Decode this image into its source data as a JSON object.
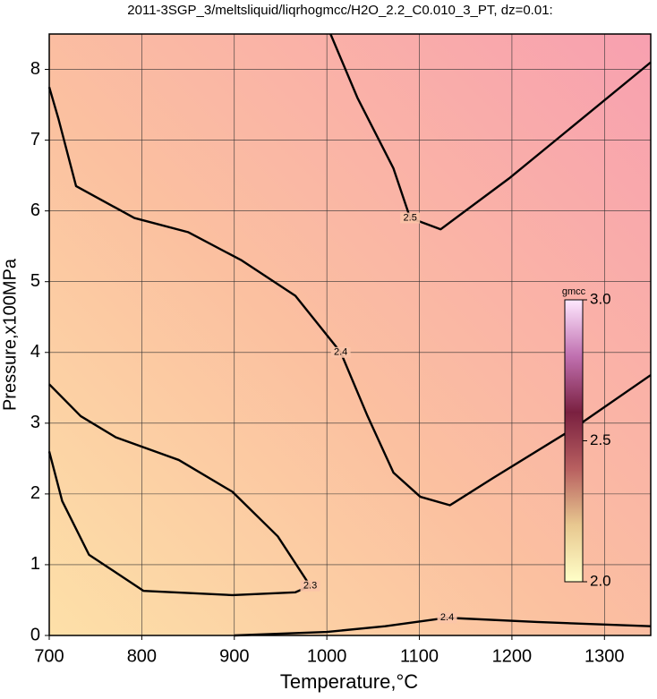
{
  "chart_data": {
    "type": "contour",
    "title": "2011-3SGP_3/meltsliquid/liqrhogmcc/H2O_2.2_C0.010_3_PT, dz=0.01:",
    "x_label": "Temperature,°C",
    "y_label": "Pressure,x100MPa",
    "xlim": [
      700,
      1350
    ],
    "ylim": [
      0,
      8.5
    ],
    "xticks": [
      700,
      800,
      900,
      1000,
      1100,
      1200,
      1300
    ],
    "yticks": [
      0,
      1,
      2,
      3,
      4,
      5,
      6,
      7,
      8
    ],
    "grid": true,
    "contours": [
      {
        "level": 2.3,
        "x": [
          700,
          734,
          772,
          840,
          898,
          947,
          982,
          966,
          898,
          802,
          743,
          714,
          700
        ],
        "y": [
          3.55,
          3.1,
          2.8,
          2.48,
          2.03,
          1.4,
          0.7,
          0.61,
          0.57,
          0.63,
          1.14,
          1.9,
          2.6
        ]
      },
      {
        "level": 2.4,
        "x": [
          700,
          710,
          729,
          792,
          850,
          908,
          966,
          1015,
          1044,
          1072,
          1101,
          1133,
          1179,
          1266,
          1350
        ],
        "y": [
          7.75,
          7.3,
          6.35,
          5.9,
          5.7,
          5.3,
          4.8,
          4.0,
          3.1,
          2.3,
          1.96,
          1.84,
          2.22,
          2.92,
          3.68
        ]
      },
      {
        "level": 2.4,
        "x": [
          900,
          1000,
          1063,
          1130,
          1227,
          1350
        ],
        "y": [
          0.0,
          0.05,
          0.13,
          0.25,
          0.19,
          0.13
        ]
      },
      {
        "level": 2.5,
        "x": [
          1004,
          1033,
          1072,
          1090,
          1123,
          1198,
          1350
        ],
        "y": [
          8.5,
          7.6,
          6.6,
          5.9,
          5.74,
          6.47,
          8.1
        ]
      }
    ],
    "colorbar": {
      "label": "gmcc",
      "lim": [
        2.0,
        3.0
      ],
      "colors": [
        "#ffffc8",
        "#e8c890",
        "#b86060",
        "#7a2040",
        "#c070b0",
        "#ffe8ff"
      ],
      "ticks": [
        {
          "value": 2.0,
          "label": "2.0"
        },
        {
          "value": 2.5,
          "label": "2.5"
        },
        {
          "value": 3.0,
          "label": "3.0"
        }
      ]
    }
  }
}
